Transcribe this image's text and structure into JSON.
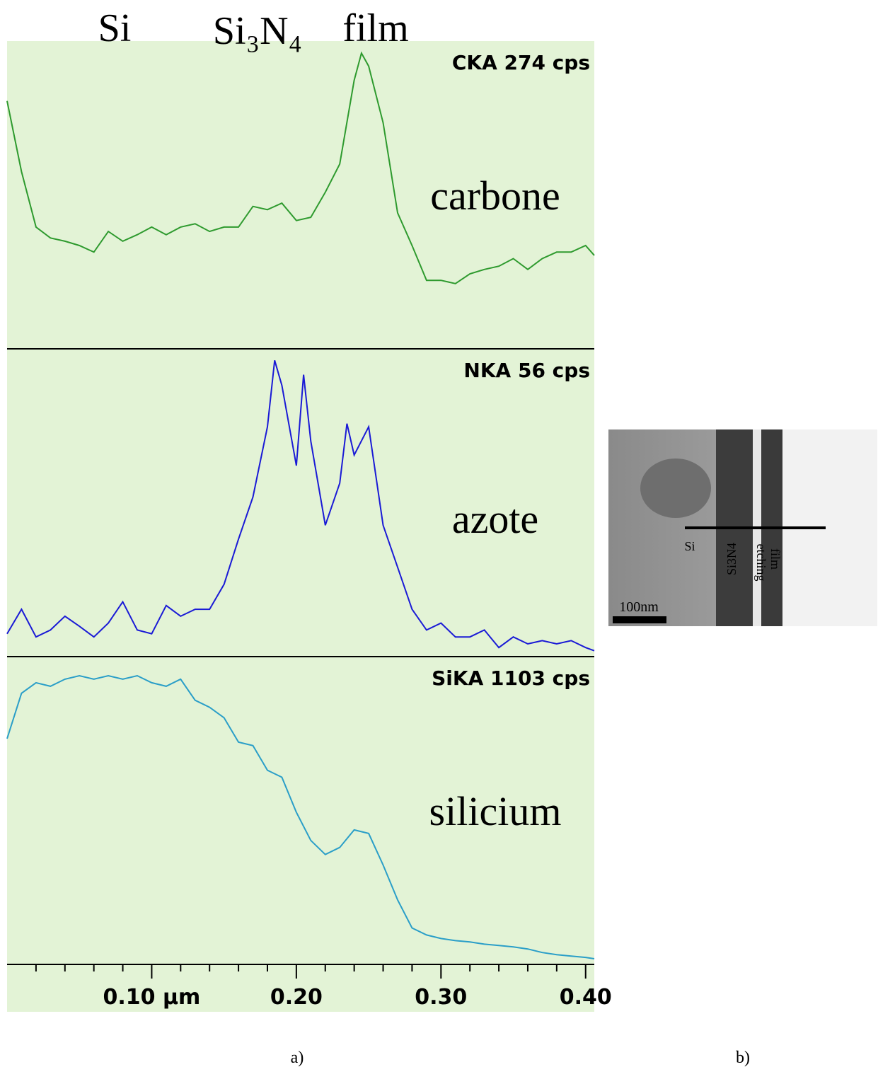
{
  "header": [
    "Si",
    "Si₃N₄",
    "film"
  ],
  "chart_data": [
    {
      "type": "line",
      "label": "CKA 274 cps",
      "xlim": [
        0,
        0.406
      ],
      "ylim": [
        0,
        274
      ],
      "x": [
        0,
        0.01,
        0.02,
        0.03,
        0.04,
        0.05,
        0.06,
        0.07,
        0.08,
        0.09,
        0.1,
        0.11,
        0.12,
        0.13,
        0.14,
        0.15,
        0.16,
        0.17,
        0.18,
        0.19,
        0.2,
        0.21,
        0.22,
        0.23,
        0.24,
        0.245,
        0.25,
        0.26,
        0.27,
        0.28,
        0.29,
        0.3,
        0.31,
        0.32,
        0.33,
        0.34,
        0.35,
        0.36,
        0.37,
        0.38,
        0.39,
        0.4,
        0.406
      ],
      "series": [
        {
          "name": "carbone",
          "color": "#2e9a2e",
          "values": [
            228,
            163,
            112,
            102,
            99,
            95,
            89,
            108,
            99,
            105,
            112,
            105,
            112,
            115,
            108,
            112,
            112,
            131,
            128,
            134,
            118,
            121,
            144,
            170,
            247,
            272,
            260,
            208,
            125,
            95,
            63,
            63,
            60,
            69,
            73,
            76,
            83,
            73,
            83,
            89,
            89,
            95,
            86
          ]
        }
      ]
    },
    {
      "type": "line",
      "label": "NKA 56 cps",
      "xlim": [
        0,
        0.406
      ],
      "ylim": [
        0,
        56
      ],
      "x": [
        0,
        0.01,
        0.02,
        0.03,
        0.04,
        0.05,
        0.06,
        0.07,
        0.08,
        0.09,
        0.1,
        0.11,
        0.12,
        0.13,
        0.14,
        0.15,
        0.16,
        0.17,
        0.18,
        0.185,
        0.19,
        0.2,
        0.205,
        0.21,
        0.22,
        0.23,
        0.235,
        0.24,
        0.25,
        0.26,
        0.27,
        0.28,
        0.29,
        0.3,
        0.31,
        0.32,
        0.33,
        0.34,
        0.35,
        0.36,
        0.37,
        0.38,
        0.39,
        0.4,
        0.406
      ],
      "series": [
        {
          "name": "azote",
          "color": "#1a1ad6",
          "values": [
            4.3,
            8.9,
            3.7,
            5,
            7.6,
            5.7,
            3.7,
            6.3,
            10.3,
            5,
            4.3,
            9.6,
            7.6,
            8.9,
            8.9,
            13.6,
            22.1,
            30,
            43.2,
            55.7,
            51,
            35.9,
            53,
            40.5,
            24.7,
            32.6,
            43.8,
            37.9,
            43.2,
            24.7,
            16.8,
            8.9,
            5,
            6.3,
            3.7,
            3.7,
            5,
            1.7,
            3.7,
            2.4,
            3,
            2.4,
            3,
            1.7,
            1.1
          ]
        }
      ]
    },
    {
      "type": "line",
      "label": "SiKA 1103 cps",
      "xlim": [
        0,
        0.406
      ],
      "ylim": [
        0,
        1103
      ],
      "x": [
        0,
        0.01,
        0.02,
        0.03,
        0.04,
        0.05,
        0.06,
        0.07,
        0.08,
        0.09,
        0.1,
        0.11,
        0.12,
        0.13,
        0.14,
        0.15,
        0.16,
        0.17,
        0.18,
        0.19,
        0.2,
        0.21,
        0.22,
        0.23,
        0.24,
        0.25,
        0.26,
        0.27,
        0.28,
        0.29,
        0.3,
        0.31,
        0.32,
        0.33,
        0.34,
        0.35,
        0.36,
        0.37,
        0.38,
        0.39,
        0.4,
        0.406
      ],
      "series": [
        {
          "name": "silicium",
          "color": "#2a9ec8",
          "values": [
            836,
            1004,
            1043,
            1030,
            1056,
            1069,
            1056,
            1069,
            1056,
            1069,
            1043,
            1030,
            1056,
            978,
            952,
            913,
            823,
            810,
            719,
            693,
            563,
            459,
            407,
            433,
            498,
            485,
            368,
            239,
            135,
            109,
            96,
            88,
            83,
            75,
            70,
            65,
            57,
            44,
            36,
            31,
            26,
            21
          ]
        }
      ],
      "xticks": [
        {
          "value": 0.1,
          "label": "0.10 µm"
        },
        {
          "value": 0.2,
          "label": "0.20"
        },
        {
          "value": 0.3,
          "label": "0.30"
        },
        {
          "value": 0.4,
          "label": "0.40"
        }
      ],
      "xminorticks": [
        0.02,
        0.04,
        0.06,
        0.08,
        0.12,
        0.14,
        0.16,
        0.18,
        0.22,
        0.24,
        0.26,
        0.28,
        0.32,
        0.34,
        0.36,
        0.38
      ]
    }
  ],
  "caption_a": "a)",
  "figure_b": {
    "caption": "b)",
    "labels": [
      "Si",
      "Si3N4",
      "etching",
      "film"
    ],
    "scale_bar": "100nm"
  }
}
